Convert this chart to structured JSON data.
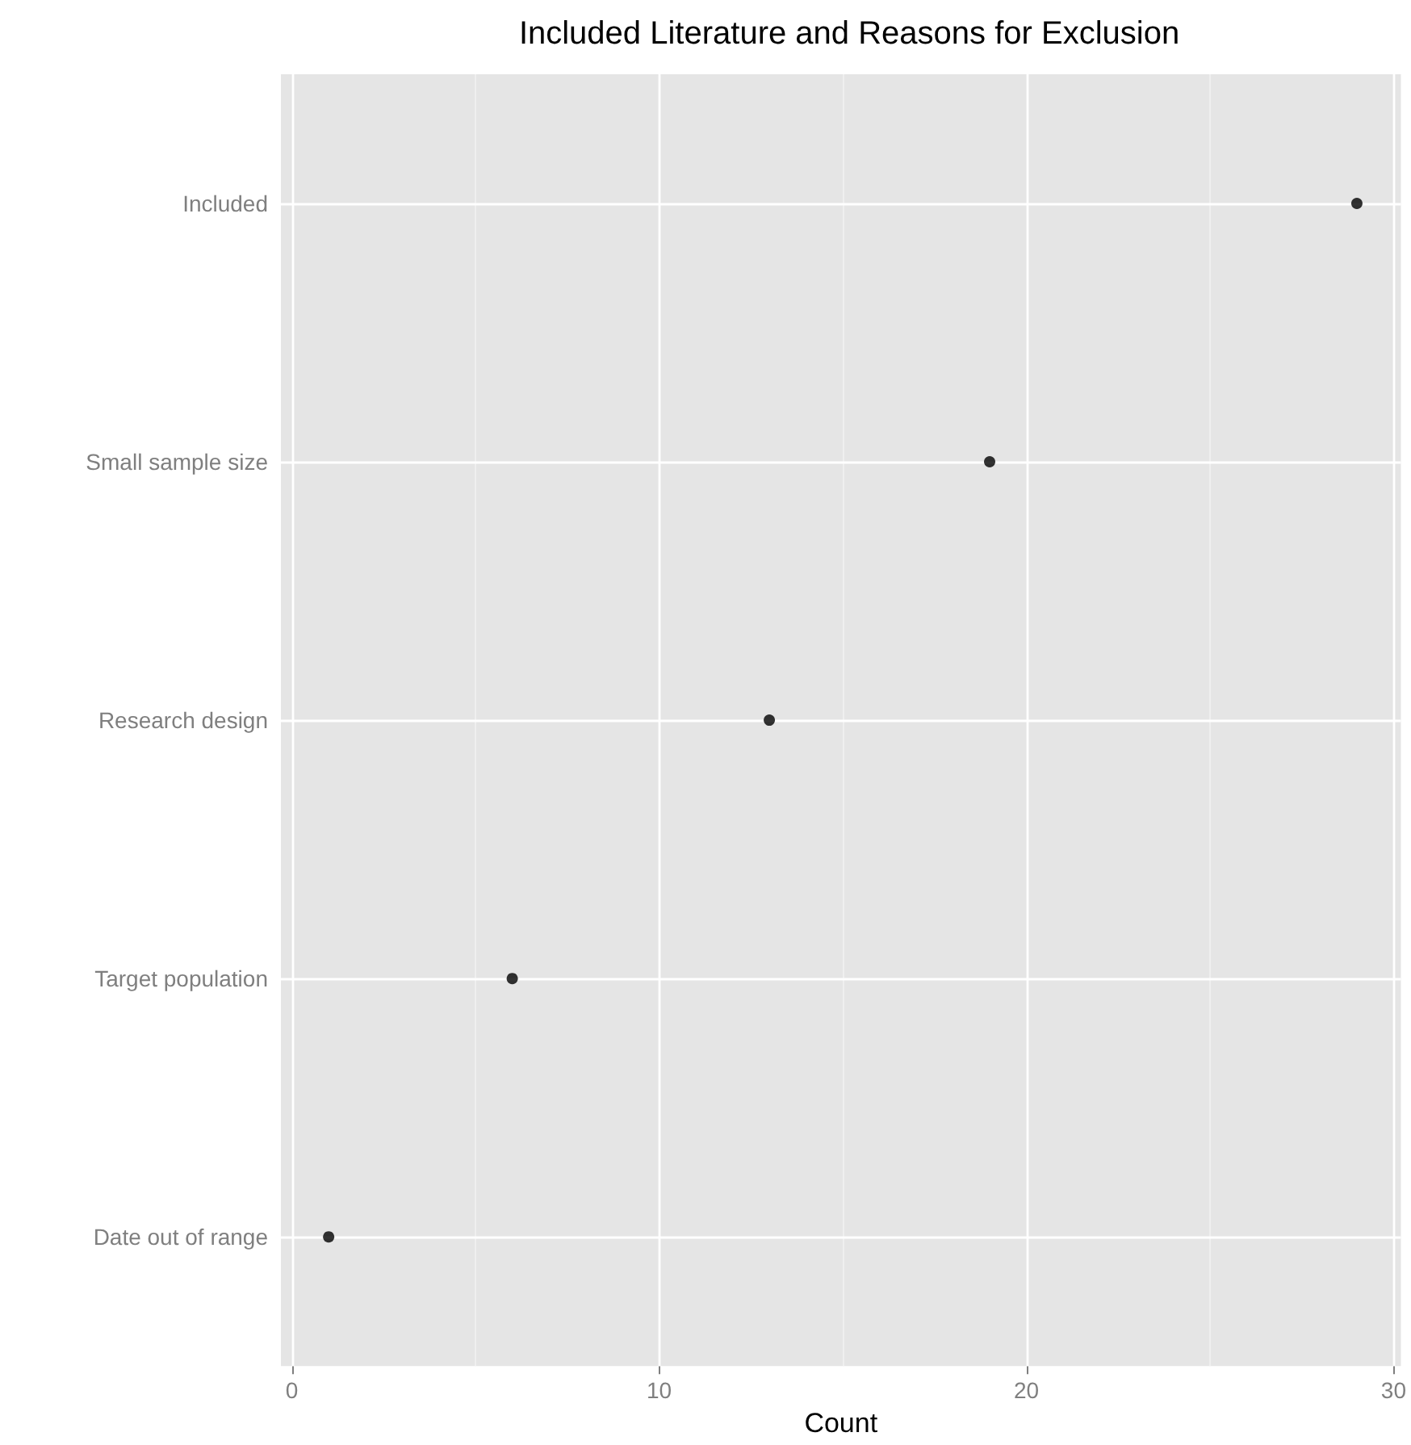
{
  "chart_data": {
    "type": "scatter",
    "title": "Included Literature and Reasons for Exclusion",
    "xlabel": "Count",
    "categories": [
      "Included",
      "Small sample size",
      "Research design",
      "Target population",
      "Date out of range"
    ],
    "orientation": "horizontal",
    "values": [
      29,
      19,
      13,
      6,
      1
    ],
    "color": "#000000",
    "marker": "circle",
    "xlim": [
      -0.3,
      30.2
    ],
    "xticks": [
      0,
      {
        "value": 5,
        "label": null
      },
      10,
      {
        "value": 15,
        "label": null
      },
      20,
      {
        "value": 25,
        "label": null
      },
      30
    ],
    "grid": true
  }
}
